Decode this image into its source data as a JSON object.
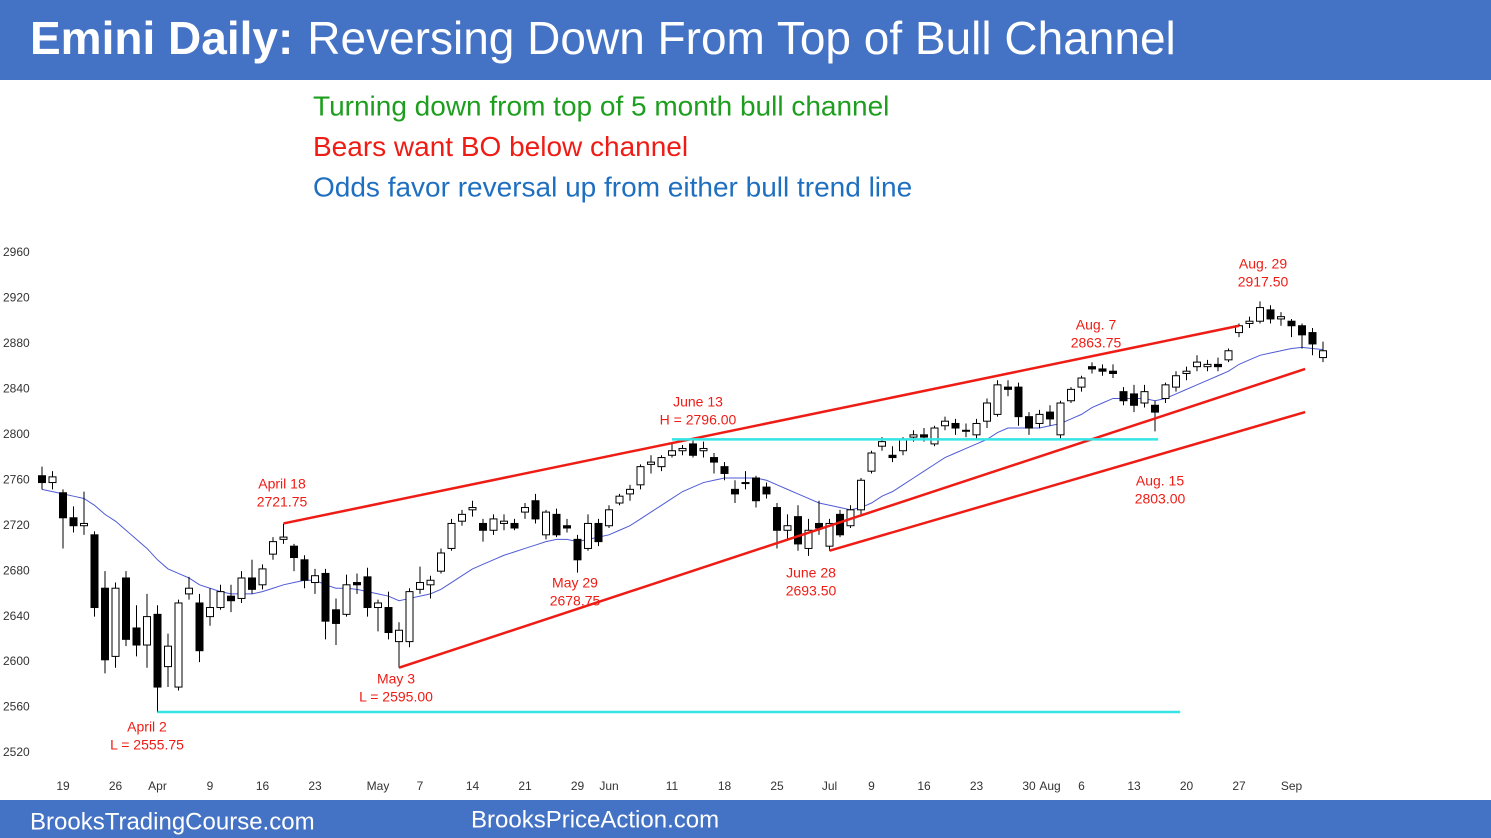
{
  "chart_data": {
    "type": "candlestick",
    "title_bold": "Emini Daily:",
    "title": "Reversing Down From Top of Bull Channel",
    "header_color": "#4472c4",
    "notes": [
      {
        "text": "Turning down from top of 5 month bull channel",
        "color": "#1e9e1e"
      },
      {
        "text": "Bears want BO below channel",
        "color": "#ee1c14"
      },
      {
        "text": "Odds favor reversal up from either bull trend line",
        "color": "#1f6fc0"
      }
    ],
    "categories": [
      null,
      null,
      "19",
      null,
      null,
      null,
      null,
      "26",
      null,
      null,
      null,
      "Apr",
      null,
      null,
      null,
      null,
      "9",
      null,
      null,
      null,
      null,
      "16",
      null,
      null,
      null,
      null,
      "23",
      null,
      null,
      null,
      null,
      null,
      "May",
      null,
      null,
      null,
      "7",
      null,
      null,
      null,
      null,
      "14",
      null,
      null,
      null,
      null,
      "21",
      null,
      null,
      null,
      null,
      "29",
      null,
      null,
      "Jun",
      null,
      null,
      null,
      null,
      null,
      "11",
      null,
      null,
      null,
      null,
      "18",
      null,
      null,
      null,
      null,
      "25",
      null,
      null,
      null,
      null,
      "Jul",
      null,
      null,
      null,
      "9",
      null,
      null,
      null,
      null,
      "16",
      null,
      null,
      null,
      null,
      "23",
      null,
      null,
      null,
      null,
      "30",
      null,
      "Aug",
      null,
      null,
      "6",
      null,
      null,
      null,
      null,
      "13",
      null,
      null,
      null,
      null,
      "20",
      null,
      null,
      null,
      null,
      "27",
      null,
      null,
      null,
      null,
      "Sep",
      null,
      null,
      null
    ],
    "ohlc": [
      [
        2764,
        2772,
        2752,
        2758
      ],
      [
        2758,
        2768,
        2752,
        2763
      ],
      [
        2749,
        2752,
        2700,
        2727
      ],
      [
        2727,
        2737,
        2714,
        2720
      ],
      [
        2720,
        2750,
        2712,
        2722
      ],
      [
        2712,
        2715,
        2640,
        2648
      ],
      [
        2665,
        2680,
        2590,
        2602
      ],
      [
        2605,
        2670,
        2595,
        2665
      ],
      [
        2674,
        2680,
        2614,
        2620
      ],
      [
        2630,
        2650,
        2605,
        2615
      ],
      [
        2615,
        2660,
        2595,
        2640
      ],
      [
        2642,
        2650,
        2555.75,
        2578
      ],
      [
        2596,
        2625,
        2578,
        2614
      ],
      [
        2578,
        2655,
        2575,
        2652
      ],
      [
        2660,
        2675,
        2655,
        2665
      ],
      [
        2652,
        2660,
        2600,
        2610
      ],
      [
        2640,
        2665,
        2632,
        2648
      ],
      [
        2648,
        2668,
        2646,
        2662
      ],
      [
        2658,
        2668,
        2644,
        2654
      ],
      [
        2656,
        2680,
        2652,
        2674
      ],
      [
        2674,
        2690,
        2660,
        2664
      ],
      [
        2668,
        2686,
        2664,
        2682
      ],
      [
        2695,
        2710,
        2690,
        2706
      ],
      [
        2708,
        2721.75,
        2704,
        2710
      ],
      [
        2702,
        2704,
        2680,
        2692
      ],
      [
        2690,
        2694,
        2665,
        2672
      ],
      [
        2670,
        2682,
        2660,
        2676
      ],
      [
        2678,
        2682,
        2620,
        2636
      ],
      [
        2646,
        2656,
        2615,
        2634
      ],
      [
        2642,
        2677,
        2640,
        2668
      ],
      [
        2670,
        2678,
        2660,
        2668
      ],
      [
        2675,
        2683,
        2640,
        2648
      ],
      [
        2648,
        2655,
        2627,
        2652
      ],
      [
        2648,
        2662,
        2620,
        2626
      ],
      [
        2618,
        2635,
        2595,
        2628
      ],
      [
        2618,
        2665,
        2613,
        2662
      ],
      [
        2664,
        2684,
        2660,
        2670
      ],
      [
        2668,
        2676,
        2656,
        2672
      ],
      [
        2680,
        2700,
        2678,
        2696
      ],
      [
        2700,
        2726,
        2698,
        2722
      ],
      [
        2724,
        2734,
        2720,
        2730
      ],
      [
        2734,
        2742,
        2728,
        2736
      ],
      [
        2722,
        2726,
        2706,
        2716
      ],
      [
        2716,
        2730,
        2712,
        2726
      ],
      [
        2722,
        2730,
        2716,
        2724
      ],
      [
        2722,
        2726,
        2716,
        2718
      ],
      [
        2732,
        2740,
        2726,
        2736
      ],
      [
        2742,
        2748,
        2722,
        2726
      ],
      [
        2712,
        2734,
        2708,
        2732
      ],
      [
        2730,
        2735,
        2710,
        2712
      ],
      [
        2720,
        2726,
        2714,
        2718
      ],
      [
        2708,
        2712,
        2678.75,
        2690
      ],
      [
        2700,
        2730,
        2698,
        2722
      ],
      [
        2722,
        2726,
        2702,
        2706
      ],
      [
        2720,
        2738,
        2718,
        2734
      ],
      [
        2740,
        2748,
        2738,
        2746
      ],
      [
        2748,
        2756,
        2742,
        2752
      ],
      [
        2756,
        2774,
        2752,
        2772
      ],
      [
        2774,
        2782,
        2766,
        2776
      ],
      [
        2772,
        2782,
        2768,
        2780
      ],
      [
        2782,
        2792,
        2780,
        2786
      ],
      [
        2786,
        2791,
        2782,
        2788
      ],
      [
        2792,
        2796,
        2780,
        2782
      ],
      [
        2786,
        2794,
        2780,
        2788
      ],
      [
        2780,
        2784,
        2766,
        2776
      ],
      [
        2772,
        2776,
        2760,
        2766
      ],
      [
        2752,
        2760,
        2740,
        2748
      ],
      [
        2758,
        2768,
        2752,
        2758
      ],
      [
        2762,
        2764,
        2736,
        2742
      ],
      [
        2754,
        2758,
        2744,
        2748
      ],
      [
        2736,
        2740,
        2700,
        2716
      ],
      [
        2716,
        2730,
        2708,
        2720
      ],
      [
        2728,
        2738,
        2698,
        2704
      ],
      [
        2700,
        2726,
        2693.5,
        2716
      ],
      [
        2722,
        2742,
        2712,
        2718
      ],
      [
        2702,
        2726,
        2698,
        2722
      ],
      [
        2730,
        2734,
        2710,
        2712
      ],
      [
        2720,
        2738,
        2718,
        2734
      ],
      [
        2734,
        2762,
        2730,
        2760
      ],
      [
        2768,
        2786,
        2766,
        2784
      ],
      [
        2790,
        2798,
        2786,
        2794
      ],
      [
        2782,
        2790,
        2776,
        2780
      ],
      [
        2786,
        2798,
        2782,
        2796
      ],
      [
        2798,
        2804,
        2794,
        2800
      ],
      [
        2800,
        2806,
        2794,
        2798
      ],
      [
        2792,
        2808,
        2790,
        2806
      ],
      [
        2808,
        2816,
        2804,
        2812
      ],
      [
        2810,
        2814,
        2800,
        2806
      ],
      [
        2804,
        2810,
        2798,
        2804
      ],
      [
        2800,
        2814,
        2796,
        2810
      ],
      [
        2812,
        2832,
        2806,
        2828
      ],
      [
        2818,
        2848,
        2816,
        2844
      ],
      [
        2842,
        2848,
        2834,
        2840
      ],
      [
        2842,
        2846,
        2808,
        2816
      ],
      [
        2816,
        2820,
        2800,
        2806
      ],
      [
        2810,
        2822,
        2806,
        2818
      ],
      [
        2820,
        2826,
        2808,
        2814
      ],
      [
        2800,
        2830,
        2796,
        2828
      ],
      [
        2830,
        2842,
        2828,
        2840
      ],
      [
        2842,
        2852,
        2838,
        2850
      ],
      [
        2860,
        2863.75,
        2854,
        2858
      ],
      [
        2858,
        2862,
        2852,
        2856
      ],
      [
        2856,
        2862,
        2850,
        2854
      ],
      [
        2838,
        2842,
        2826,
        2830
      ],
      [
        2836,
        2844,
        2820,
        2826
      ],
      [
        2828,
        2844,
        2824,
        2838
      ],
      [
        2826,
        2830,
        2803,
        2820
      ],
      [
        2832,
        2846,
        2828,
        2844
      ],
      [
        2842,
        2856,
        2838,
        2852
      ],
      [
        2854,
        2860,
        2848,
        2856
      ],
      [
        2860,
        2870,
        2856,
        2864
      ],
      [
        2860,
        2866,
        2856,
        2862
      ],
      [
        2862,
        2868,
        2856,
        2860
      ],
      [
        2866,
        2876,
        2864,
        2874
      ],
      [
        2890,
        2898,
        2886,
        2896
      ],
      [
        2898,
        2904,
        2894,
        2900
      ],
      [
        2900,
        2917.5,
        2898,
        2912
      ],
      [
        2910,
        2914,
        2898,
        2902
      ],
      [
        2902,
        2908,
        2896,
        2904
      ],
      [
        2900,
        2902,
        2886,
        2896
      ],
      [
        2896,
        2898,
        2876,
        2888
      ],
      [
        2890,
        2894,
        2870,
        2880
      ],
      [
        2868,
        2882,
        2864,
        2874
      ]
    ],
    "moving_average": {
      "color": "#4f5bd5",
      "values": [
        2752,
        2750,
        2748,
        2746,
        2744,
        2738,
        2730,
        2724,
        2716,
        2708,
        2700,
        2690,
        2682,
        2678,
        2674,
        2668,
        2665,
        2662,
        2660,
        2660,
        2660,
        2662,
        2665,
        2668,
        2670,
        2672,
        2672,
        2668,
        2665,
        2665,
        2664,
        2662,
        2660,
        2658,
        2654,
        2656,
        2658,
        2660,
        2664,
        2670,
        2676,
        2682,
        2686,
        2690,
        2694,
        2697,
        2700,
        2703,
        2706,
        2708,
        2708,
        2706,
        2708,
        2710,
        2712,
        2716,
        2720,
        2726,
        2732,
        2738,
        2744,
        2750,
        2754,
        2758,
        2760,
        2762,
        2762,
        2762,
        2762,
        2760,
        2756,
        2752,
        2748,
        2744,
        2740,
        2738,
        2736,
        2734,
        2736,
        2740,
        2746,
        2750,
        2756,
        2762,
        2768,
        2774,
        2780,
        2784,
        2788,
        2792,
        2796,
        2802,
        2806,
        2806,
        2806,
        2806,
        2808,
        2810,
        2814,
        2818,
        2824,
        2828,
        2832,
        2832,
        2832,
        2832,
        2830,
        2832,
        2836,
        2840,
        2844,
        2848,
        2852,
        2856,
        2862,
        2866,
        2870,
        2872,
        2874,
        2876,
        2877,
        2876,
        2875
      ]
    },
    "lines": [
      {
        "color": "#ee1c14",
        "x": [
          23,
          114
        ],
        "y": [
          2722,
          2896
        ]
      },
      {
        "color": "#ee1c14",
        "x": [
          34,
          120.3
        ],
        "y": [
          2595,
          2858
        ]
      },
      {
        "color": "#ee1c14",
        "x": [
          75,
          120.3
        ],
        "y": [
          2698,
          2820
        ]
      },
      {
        "color": "#33e5e5",
        "x": [
          60,
          106.3
        ],
        "y": [
          2796,
          2796
        ]
      },
      {
        "color": "#33e5e5",
        "x": [
          11,
          108.4
        ],
        "y": [
          2556,
          2556
        ]
      }
    ],
    "annotation_color": "#ee1c14",
    "annotations": [
      {
        "lines": [
          "April 18",
          "2721.75"
        ]
      },
      {
        "lines": [
          "April 2",
          "L = 2555.75"
        ]
      },
      {
        "lines": [
          "May 3",
          "L = 2595.00"
        ]
      },
      {
        "lines": [
          "May 29",
          "2678.75"
        ]
      },
      {
        "lines": [
          "June 13",
          "H = 2796.00"
        ]
      },
      {
        "lines": [
          "June 28",
          "2693.50"
        ]
      },
      {
        "lines": [
          "Aug. 7",
          "2863.75"
        ]
      },
      {
        "lines": [
          "Aug. 15",
          "2803.00"
        ]
      },
      {
        "lines": [
          "Aug. 29",
          "2917.50"
        ]
      }
    ],
    "ylim": [
      2505,
      2975
    ],
    "yticks": [
      2520,
      2560,
      2600,
      2640,
      2680,
      2720,
      2760,
      2800,
      2840,
      2880,
      2920,
      2960
    ]
  },
  "footer": [
    "BrooksTradingCourse.com",
    "BrooksPriceAction.com"
  ]
}
